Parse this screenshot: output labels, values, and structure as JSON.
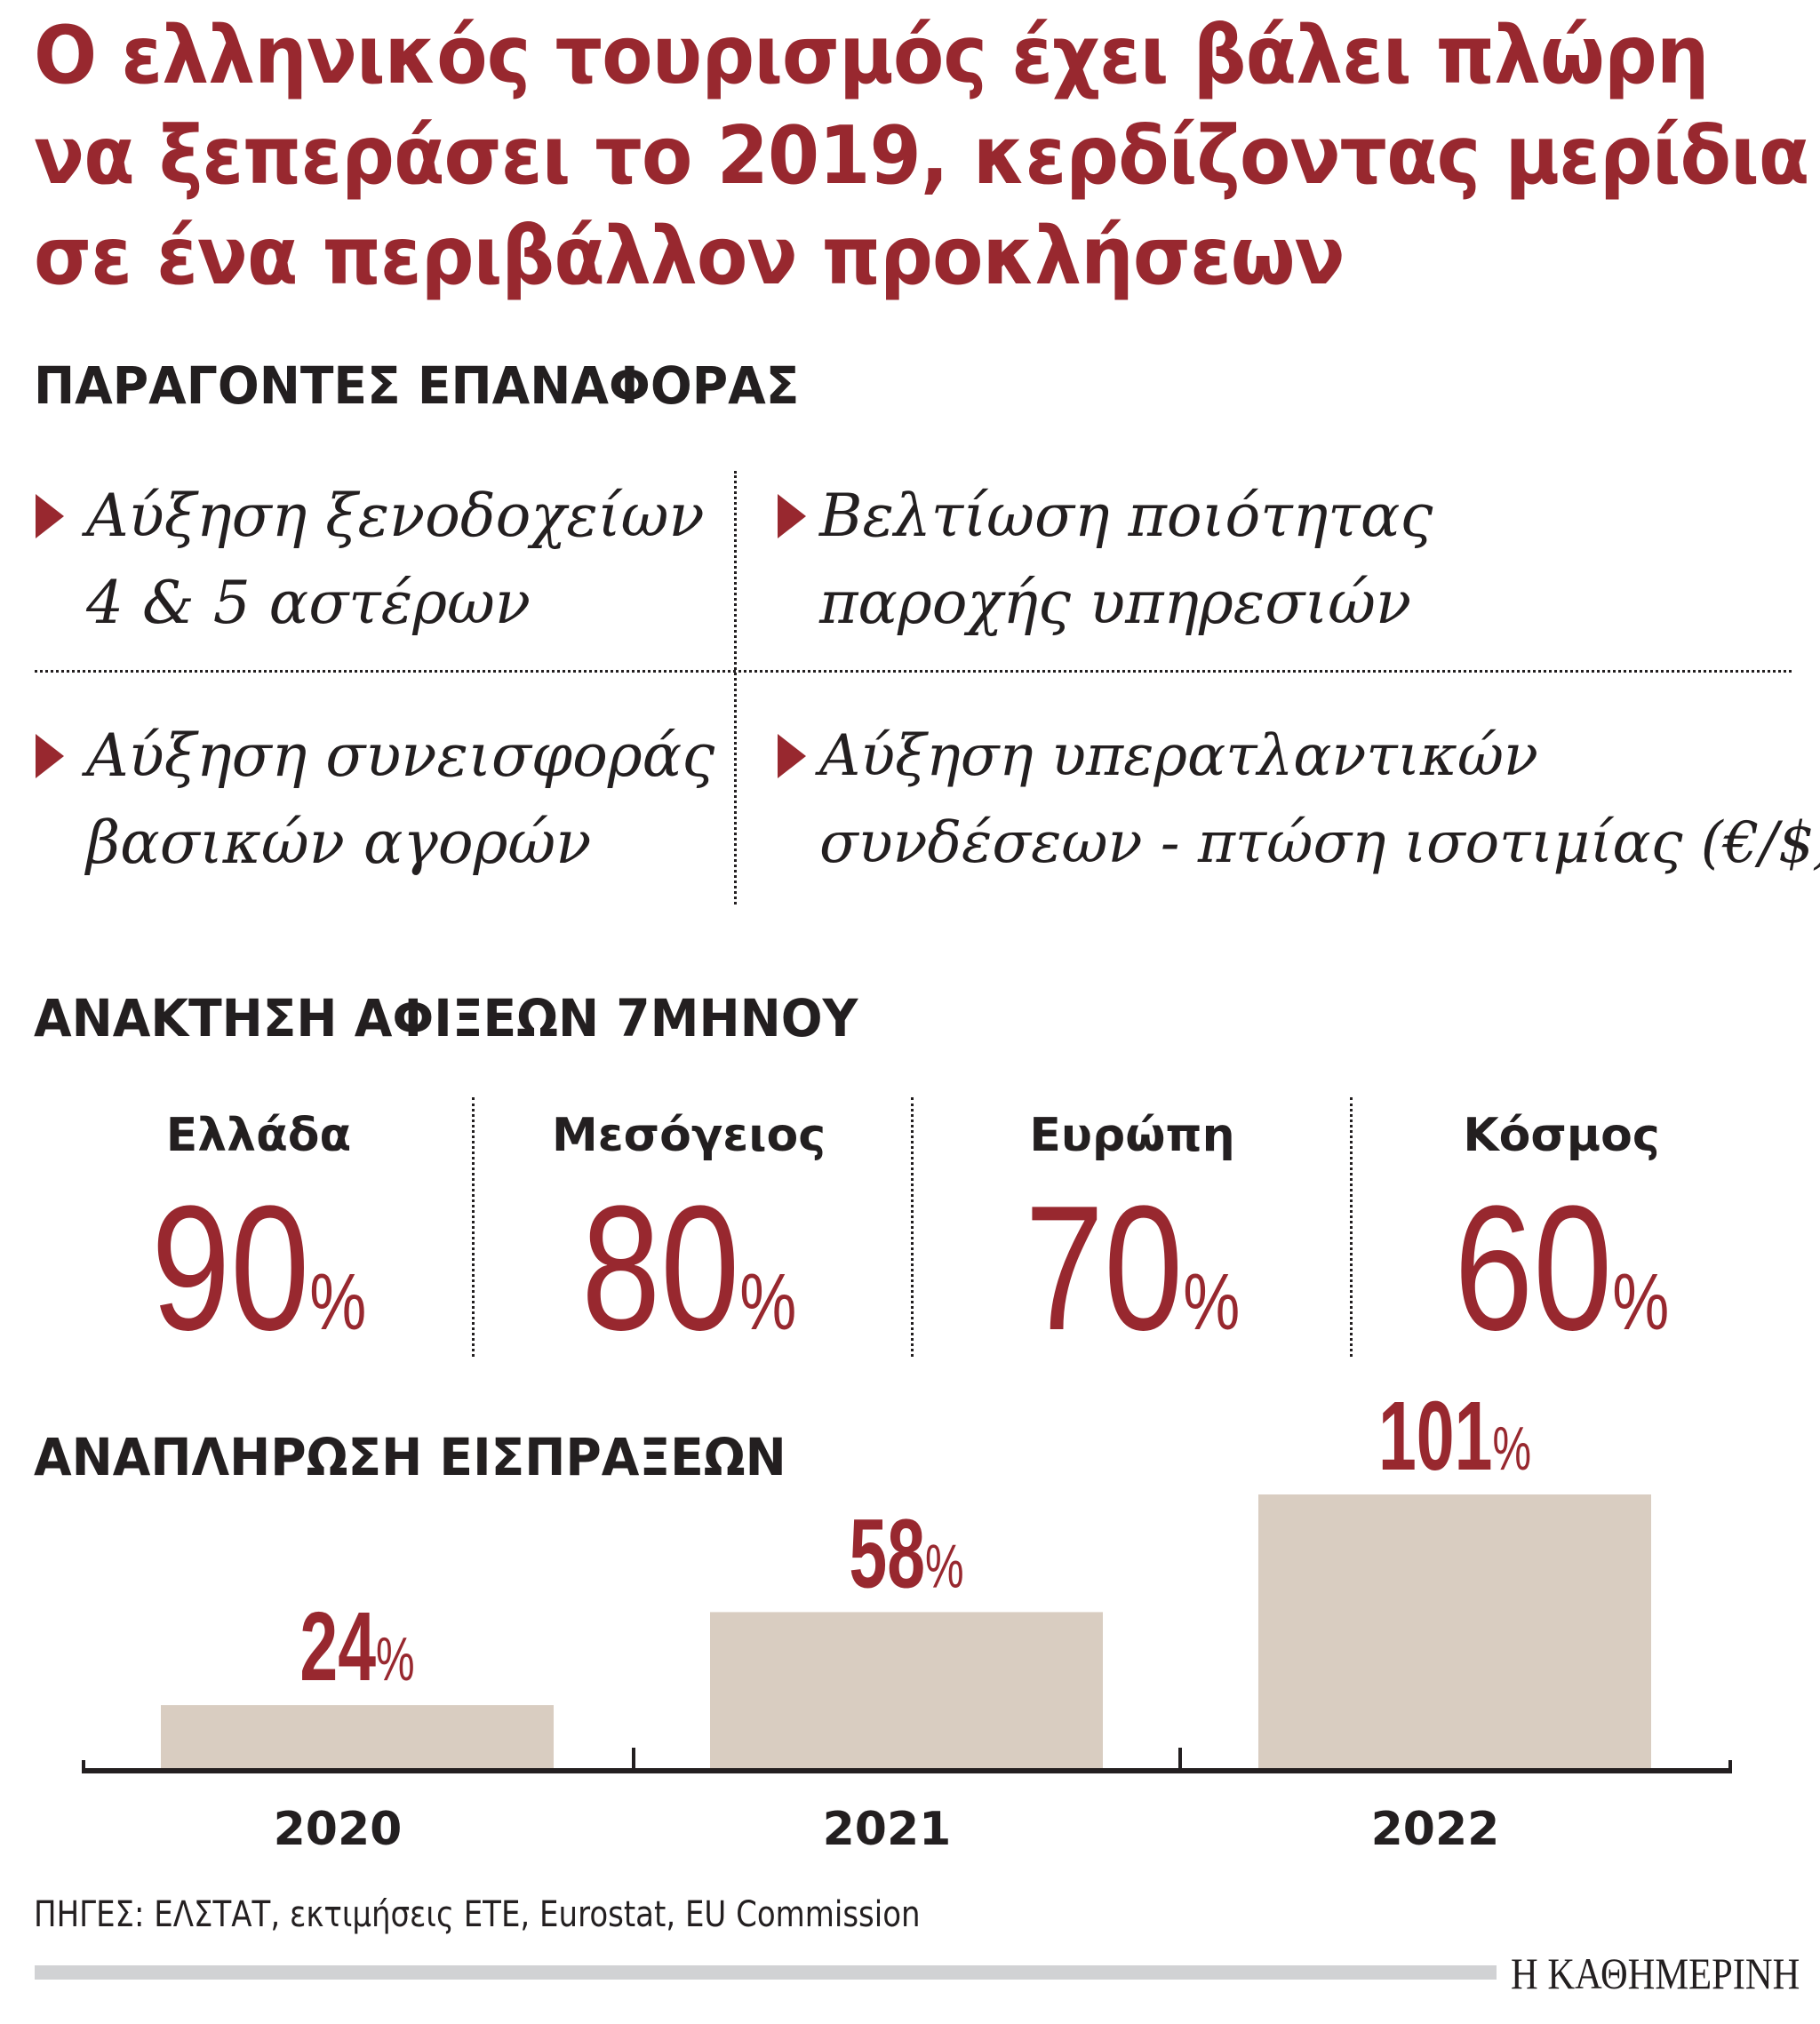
{
  "title": [
    "Ο ελληνικός τουρισμός έχει βάλει πλώρη",
    "να ξεπεράσει το 2019, κερδίζοντας μερίδια",
    "σε ένα περιβάλλον προκλήσεων"
  ],
  "factors": {
    "heading": "ΠΑΡΑΓΟΝΤΕΣ ΕΠΑΝΑΦΟΡΑΣ",
    "items": [
      {
        "line1": "Αύξηση ξενοδοχείων",
        "line2": "4 & 5 αστέρων"
      },
      {
        "line1": "Βελτίωση ποιότητας",
        "line2": "παροχής υπηρεσιών"
      },
      {
        "line1": "Αύξηση συνεισφοράς",
        "line2": "βασικών αγορών"
      },
      {
        "line1": "Αύξηση υπερατλαντικών",
        "line2": "συνδέσεων - πτώση ισοτιμίας (€/$)"
      }
    ]
  },
  "arrivals": {
    "heading": "ΑΝΑΚΤΗΣΗ ΑΦΙΞΕΩΝ 7ΜΗΝΟΥ",
    "stats": [
      {
        "label": "Ελλάδα",
        "value": "90",
        "unit": "%"
      },
      {
        "label": "Μεσόγειος",
        "value": "80",
        "unit": "%"
      },
      {
        "label": "Ευρώπη",
        "value": "70",
        "unit": "%"
      },
      {
        "label": "Κόσμος",
        "value": "60",
        "unit": "%"
      }
    ]
  },
  "chart_data": {
    "type": "bar",
    "title": "ΑΝΑΠΛΗΡΩΣΗ ΕΙΣΠΡΑΞΕΩΝ",
    "categories": [
      "2020",
      "2021",
      "2022"
    ],
    "values": [
      24,
      58,
      101
    ],
    "data_labels": [
      "24",
      "58",
      "101"
    ],
    "unit": "%",
    "ylim": [
      0,
      101
    ],
    "grid": false,
    "colors": {
      "bar": "#d9cdc1",
      "label": "#98282f",
      "axis": "#231f20"
    }
  },
  "source": "ΠΗΓΕΣ: ΕΛΣΤΑΤ, εκτιμήσεις ΕΤΕ, Eurostat, EU Commission",
  "logo": "Η ΚΑΘΗΜΕΡΙΝΗ",
  "colors": {
    "accent": "#98282f",
    "text": "#231f20"
  }
}
